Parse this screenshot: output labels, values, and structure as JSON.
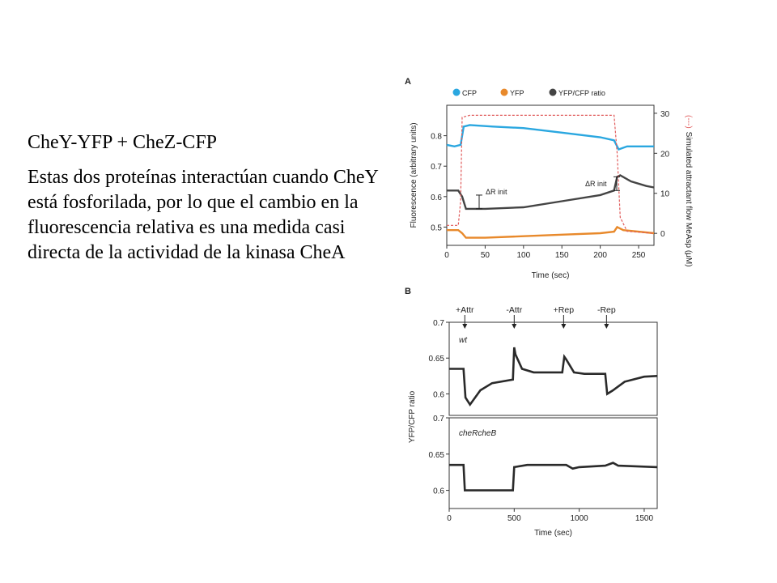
{
  "slide": {
    "title": "CheY-YFP + CheZ-CFP",
    "body": "Estas dos proteínas interactúan cuando CheY está fosforilada, por lo que el cambio en la fluorescencia relativa es una medida casi directa de la actividad de la kinasa CheA"
  },
  "chart_data": [
    {
      "type": "line",
      "panel_label": "A",
      "xlabel": "Time (sec)",
      "ylabel": "Fluorescence (arbitrary units)",
      "y2label": "Simulated attractant flow MeAsp (μM)",
      "xlim": [
        0,
        270
      ],
      "ylim": [
        0.44,
        0.9
      ],
      "y2lim": [
        -3,
        32
      ],
      "xticks": [
        "0",
        "50",
        "100",
        "150",
        "200",
        "250"
      ],
      "yticks": [
        "0.5",
        "0.6",
        "0.7",
        "0.8"
      ],
      "y2ticks": [
        "0",
        "10",
        "20",
        "30"
      ],
      "legend_prefix": "(---)",
      "annotations": [
        "ΔR init",
        "ΔR init"
      ],
      "colors": {
        "cfp": "#2aa7e0",
        "yfp": "#e8892b",
        "ratio": "#444444",
        "flow": "#e05a5a"
      },
      "series": [
        {
          "name": "CFP",
          "axis": "left",
          "x": [
            0,
            10,
            18,
            22,
            30,
            60,
            100,
            150,
            200,
            218,
            224,
            235,
            250,
            270
          ],
          "y": [
            0.77,
            0.765,
            0.77,
            0.83,
            0.835,
            0.83,
            0.825,
            0.81,
            0.795,
            0.785,
            0.755,
            0.765,
            0.765,
            0.765
          ]
        },
        {
          "name": "YFP",
          "axis": "left",
          "x": [
            0,
            15,
            20,
            25,
            50,
            100,
            150,
            200,
            218,
            222,
            230,
            250,
            270
          ],
          "y": [
            0.49,
            0.49,
            0.48,
            0.465,
            0.465,
            0.47,
            0.475,
            0.48,
            0.485,
            0.5,
            0.49,
            0.485,
            0.48
          ]
        },
        {
          "name": "YFP/CFP ratio",
          "axis": "left",
          "x": [
            0,
            15,
            20,
            25,
            50,
            100,
            150,
            200,
            218,
            222,
            226,
            240,
            260,
            270
          ],
          "y": [
            0.62,
            0.62,
            0.6,
            0.56,
            0.56,
            0.565,
            0.585,
            0.605,
            0.62,
            0.665,
            0.67,
            0.65,
            0.635,
            0.63
          ]
        },
        {
          "name": "Simulated attractant flow",
          "axis": "right",
          "x": [
            0,
            15,
            18,
            20,
            30,
            200,
            218,
            222,
            226,
            235,
            270
          ],
          "y": [
            2,
            2,
            8,
            29,
            29.5,
            29.5,
            29.5,
            20,
            4,
            0.5,
            0
          ]
        }
      ]
    },
    {
      "type": "line",
      "panel_label": "B",
      "xlabel": "Time (sec)",
      "ylabel": "YFP/CFP ratio",
      "xlim": [
        0,
        1600
      ],
      "xticks": [
        "0",
        "500",
        "1000",
        "1500"
      ],
      "events": [
        {
          "label": "+Attr",
          "x": 120
        },
        {
          "label": "-Attr",
          "x": 500
        },
        {
          "label": "+Rep",
          "x": 880
        },
        {
          "label": "-Rep",
          "x": 1210
        }
      ],
      "subplots": [
        {
          "name": "wt",
          "ylim": [
            0.57,
            0.7
          ],
          "yticks": [
            "0.7",
            "0.65",
            "0.6"
          ],
          "x": [
            0,
            110,
            125,
            160,
            240,
            330,
            490,
            500,
            510,
            560,
            650,
            870,
            885,
            900,
            960,
            1040,
            1200,
            1215,
            1260,
            1350,
            1500,
            1600
          ],
          "y": [
            0.635,
            0.635,
            0.595,
            0.585,
            0.605,
            0.615,
            0.62,
            0.665,
            0.655,
            0.635,
            0.63,
            0.63,
            0.652,
            0.648,
            0.63,
            0.628,
            0.628,
            0.6,
            0.605,
            0.617,
            0.624,
            0.625
          ]
        },
        {
          "name": "cheRcheB",
          "ylim": [
            0.575,
            0.7
          ],
          "yticks": [
            "0.7",
            "0.65",
            "0.6"
          ],
          "x": [
            0,
            110,
            120,
            200,
            490,
            500,
            600,
            900,
            950,
            1000,
            1200,
            1260,
            1300,
            1600
          ],
          "y": [
            0.635,
            0.635,
            0.6,
            0.6,
            0.6,
            0.632,
            0.635,
            0.635,
            0.63,
            0.632,
            0.634,
            0.638,
            0.634,
            0.632
          ]
        }
      ]
    }
  ]
}
